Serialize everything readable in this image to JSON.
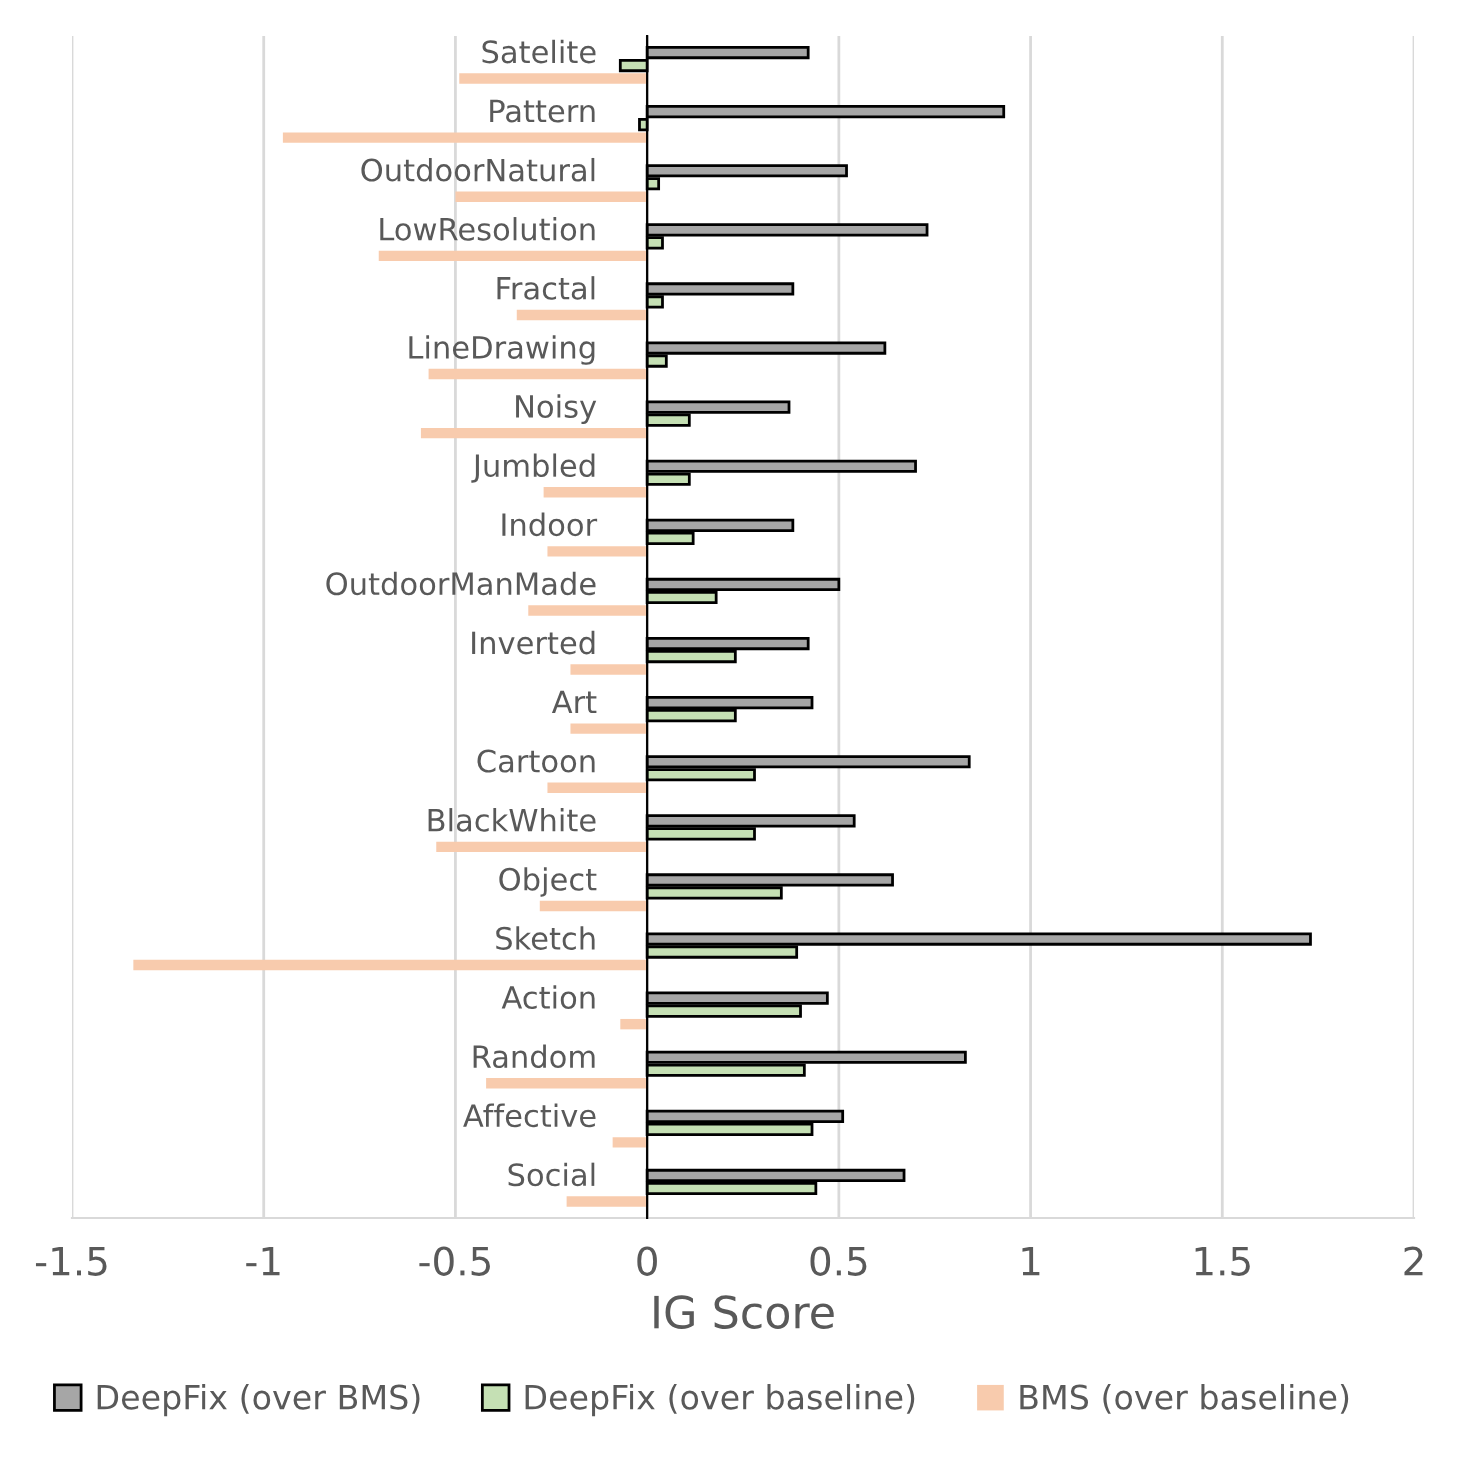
{
  "chart_data": {
    "type": "bar",
    "orientation": "horizontal",
    "xlabel": "IG Score",
    "categories": [
      "Satelite",
      "Pattern",
      "OutdoorNatural",
      "LowResolution",
      "Fractal",
      "LineDrawing",
      "Noisy",
      "Jumbled",
      "Indoor",
      "OutdoorManMade",
      "Inverted",
      "Art",
      "Cartoon",
      "BlackWhite",
      "Object",
      "Sketch",
      "Action",
      "Random",
      "Affective",
      "Social"
    ],
    "series": [
      {
        "name": "DeepFix (over BMS)",
        "color": "#a6a6a6",
        "values": [
          0.42,
          0.93,
          0.52,
          0.73,
          0.38,
          0.62,
          0.37,
          0.7,
          0.38,
          0.5,
          0.42,
          0.43,
          0.84,
          0.54,
          0.64,
          1.73,
          0.47,
          0.83,
          0.51,
          0.67
        ]
      },
      {
        "name": "DeepFix (over baseline)",
        "color": "#c5e0b4",
        "values": [
          -0.07,
          -0.02,
          0.03,
          0.04,
          0.04,
          0.05,
          0.11,
          0.11,
          0.12,
          0.18,
          0.23,
          0.23,
          0.28,
          0.28,
          0.35,
          0.39,
          0.4,
          0.41,
          0.43,
          0.44
        ]
      },
      {
        "name": "BMS (over baseline)",
        "color": "#f8cbad",
        "values": [
          -0.49,
          -0.95,
          -0.5,
          -0.7,
          -0.34,
          -0.57,
          -0.59,
          -0.27,
          -0.26,
          -0.31,
          -0.2,
          -0.2,
          -0.26,
          -0.55,
          -0.28,
          -1.34,
          -0.07,
          -0.42,
          -0.09,
          -0.21
        ]
      }
    ],
    "xlim": [
      -1.5,
      2
    ],
    "xticks": [
      -1.5,
      -1,
      -0.5,
      0,
      0.5,
      1,
      1.5,
      2
    ],
    "grid": "x",
    "legend": "bottom"
  }
}
